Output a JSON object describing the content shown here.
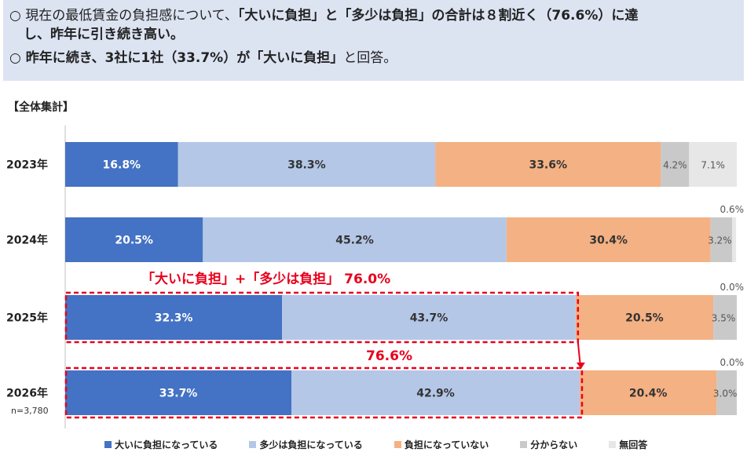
{
  "summary": {
    "line1_prefix": "○ 現在の最低賃金の負担感について、",
    "line1_bold1": "「大いに負担」と「多少は負担」の合計は８割近く（76.6%）に達",
    "line2_bold": "し、昨年に引き続き高い。",
    "line3_bold": "○ 昨年に続き、3社に1社（33.7%）が「大いに負担」",
    "line3_rest": "と回答。"
  },
  "section_label": "【全体集計】",
  "chart_data": {
    "type": "bar",
    "orientation": "horizontal",
    "stacked": true,
    "categories": [
      "2023年",
      "2024年",
      "2025年",
      "2026年"
    ],
    "n_label": "n=3,780",
    "series": [
      {
        "name": "大いに負担になっている",
        "color": "#4472c4",
        "values": [
          16.8,
          20.5,
          32.3,
          33.7
        ]
      },
      {
        "name": "多少は負担になっている",
        "color": "#b4c7e7",
        "values": [
          38.3,
          45.2,
          43.7,
          42.9
        ]
      },
      {
        "name": "負担になっていない",
        "color": "#f4b183",
        "values": [
          33.6,
          30.4,
          20.5,
          20.4
        ]
      },
      {
        "name": "分からない",
        "color": "#c9c9c9",
        "values": [
          4.2,
          3.2,
          3.5,
          3.0
        ]
      },
      {
        "name": "無回答",
        "color": "#e7e7e7",
        "values": [
          7.1,
          0.6,
          0.0,
          0.0
        ]
      }
    ],
    "labels": [
      [
        "16.8%",
        "38.3%",
        "33.6%",
        "4.2%",
        "7.1%"
      ],
      [
        "20.5%",
        "45.2%",
        "30.4%",
        "3.2%",
        "0.6%"
      ],
      [
        "32.3%",
        "43.7%",
        "20.5%",
        "3.5%",
        "0.0%"
      ],
      [
        "33.7%",
        "42.9%",
        "20.4%",
        "3.0%",
        "0.0%"
      ]
    ],
    "annotations": [
      {
        "text": "「大いに負担」+「多少は負担」 76.0%",
        "category": "2025年"
      },
      {
        "text": "76.6%",
        "category": "2026年"
      }
    ],
    "xlim": [
      0,
      100
    ],
    "legend_position": "bottom"
  }
}
